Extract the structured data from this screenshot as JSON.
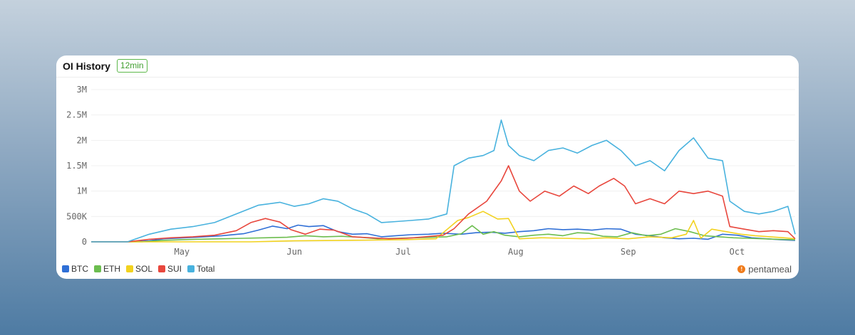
{
  "header": {
    "title": "OI History",
    "badge": "12min"
  },
  "brand": {
    "label": "pentameal",
    "icon": "pentameal-logo-icon"
  },
  "chart_data": {
    "type": "line",
    "title": "OI History",
    "xlabel": "",
    "ylabel": "",
    "ylim": [
      0,
      3000000
    ],
    "yticks": [
      {
        "value": 0,
        "label": "0"
      },
      {
        "value": 500000,
        "label": "500K"
      },
      {
        "value": 1000000,
        "label": "1M"
      },
      {
        "value": 1500000,
        "label": "1.5M"
      },
      {
        "value": 2000000,
        "label": "2M"
      },
      {
        "value": 2500000,
        "label": "2.5M"
      },
      {
        "value": 3000000,
        "label": "3M"
      }
    ],
    "xrange": [
      "2024-04-06",
      "2024-10-17"
    ],
    "xticks": [
      {
        "date": "2024-05-01",
        "label": "May"
      },
      {
        "date": "2024-06-01",
        "label": "Jun"
      },
      {
        "date": "2024-07-01",
        "label": "Jul"
      },
      {
        "date": "2024-08-01",
        "label": "Aug"
      },
      {
        "date": "2024-09-01",
        "label": "Sep"
      },
      {
        "date": "2024-10-01",
        "label": "Oct"
      }
    ],
    "grid": true,
    "legend_position": "bottom-left",
    "series": [
      {
        "name": "BTC",
        "color": "#2f6fd6",
        "points": [
          [
            "2024-04-06",
            0
          ],
          [
            "2024-04-16",
            0
          ],
          [
            "2024-04-22",
            20000
          ],
          [
            "2024-04-26",
            60000
          ],
          [
            "2024-05-05",
            90000
          ],
          [
            "2024-05-12",
            120000
          ],
          [
            "2024-05-18",
            160000
          ],
          [
            "2024-05-22",
            230000
          ],
          [
            "2024-05-26",
            310000
          ],
          [
            "2024-05-30",
            260000
          ],
          [
            "2024-06-02",
            330000
          ],
          [
            "2024-06-05",
            300000
          ],
          [
            "2024-06-09",
            320000
          ],
          [
            "2024-06-13",
            200000
          ],
          [
            "2024-06-17",
            150000
          ],
          [
            "2024-06-21",
            160000
          ],
          [
            "2024-06-25",
            100000
          ],
          [
            "2024-06-29",
            120000
          ],
          [
            "2024-07-03",
            140000
          ],
          [
            "2024-07-08",
            150000
          ],
          [
            "2024-07-12",
            170000
          ],
          [
            "2024-07-17",
            150000
          ],
          [
            "2024-07-21",
            180000
          ],
          [
            "2024-07-25",
            190000
          ],
          [
            "2024-07-29",
            170000
          ],
          [
            "2024-08-02",
            200000
          ],
          [
            "2024-08-06",
            220000
          ],
          [
            "2024-08-10",
            260000
          ],
          [
            "2024-08-14",
            240000
          ],
          [
            "2024-08-18",
            250000
          ],
          [
            "2024-08-22",
            230000
          ],
          [
            "2024-08-26",
            260000
          ],
          [
            "2024-08-30",
            250000
          ],
          [
            "2024-09-03",
            150000
          ],
          [
            "2024-09-07",
            120000
          ],
          [
            "2024-09-11",
            80000
          ],
          [
            "2024-09-15",
            60000
          ],
          [
            "2024-09-19",
            70000
          ],
          [
            "2024-09-23",
            50000
          ],
          [
            "2024-09-27",
            150000
          ],
          [
            "2024-10-01",
            130000
          ],
          [
            "2024-10-05",
            80000
          ],
          [
            "2024-10-09",
            60000
          ],
          [
            "2024-10-13",
            40000
          ],
          [
            "2024-10-17",
            30000
          ]
        ]
      },
      {
        "name": "ETH",
        "color": "#6cbd4f",
        "points": [
          [
            "2024-04-06",
            0
          ],
          [
            "2024-04-20",
            0
          ],
          [
            "2024-04-26",
            30000
          ],
          [
            "2024-05-05",
            50000
          ],
          [
            "2024-05-12",
            60000
          ],
          [
            "2024-05-18",
            70000
          ],
          [
            "2024-05-24",
            80000
          ],
          [
            "2024-05-30",
            90000
          ],
          [
            "2024-06-04",
            120000
          ],
          [
            "2024-06-09",
            100000
          ],
          [
            "2024-06-14",
            110000
          ],
          [
            "2024-06-19",
            90000
          ],
          [
            "2024-06-24",
            60000
          ],
          [
            "2024-06-29",
            70000
          ],
          [
            "2024-07-04",
            80000
          ],
          [
            "2024-07-09",
            90000
          ],
          [
            "2024-07-13",
            100000
          ],
          [
            "2024-07-17",
            160000
          ],
          [
            "2024-07-20",
            320000
          ],
          [
            "2024-07-23",
            150000
          ],
          [
            "2024-07-26",
            200000
          ],
          [
            "2024-07-29",
            130000
          ],
          [
            "2024-08-02",
            100000
          ],
          [
            "2024-08-06",
            130000
          ],
          [
            "2024-08-10",
            150000
          ],
          [
            "2024-08-14",
            120000
          ],
          [
            "2024-08-18",
            180000
          ],
          [
            "2024-08-21",
            170000
          ],
          [
            "2024-08-25",
            110000
          ],
          [
            "2024-08-29",
            100000
          ],
          [
            "2024-09-02",
            180000
          ],
          [
            "2024-09-06",
            120000
          ],
          [
            "2024-09-10",
            150000
          ],
          [
            "2024-09-14",
            260000
          ],
          [
            "2024-09-18",
            200000
          ],
          [
            "2024-09-22",
            120000
          ],
          [
            "2024-09-26",
            100000
          ],
          [
            "2024-09-30",
            80000
          ],
          [
            "2024-10-04",
            70000
          ],
          [
            "2024-10-08",
            60000
          ],
          [
            "2024-10-12",
            50000
          ],
          [
            "2024-10-17",
            40000
          ]
        ]
      },
      {
        "name": "SOL",
        "color": "#f2d21f",
        "points": [
          [
            "2024-04-06",
            0
          ],
          [
            "2024-05-20",
            0
          ],
          [
            "2024-06-01",
            20000
          ],
          [
            "2024-06-15",
            30000
          ],
          [
            "2024-07-01",
            40000
          ],
          [
            "2024-07-10",
            60000
          ],
          [
            "2024-07-16",
            420000
          ],
          [
            "2024-07-19",
            480000
          ],
          [
            "2024-07-23",
            600000
          ],
          [
            "2024-07-27",
            450000
          ],
          [
            "2024-07-30",
            460000
          ],
          [
            "2024-08-02",
            60000
          ],
          [
            "2024-08-08",
            80000
          ],
          [
            "2024-08-14",
            70000
          ],
          [
            "2024-08-20",
            60000
          ],
          [
            "2024-08-26",
            80000
          ],
          [
            "2024-09-01",
            60000
          ],
          [
            "2024-09-07",
            100000
          ],
          [
            "2024-09-13",
            80000
          ],
          [
            "2024-09-17",
            150000
          ],
          [
            "2024-09-19",
            420000
          ],
          [
            "2024-09-21",
            70000
          ],
          [
            "2024-09-24",
            250000
          ],
          [
            "2024-09-28",
            200000
          ],
          [
            "2024-10-02",
            150000
          ],
          [
            "2024-10-06",
            120000
          ],
          [
            "2024-10-10",
            100000
          ],
          [
            "2024-10-14",
            80000
          ],
          [
            "2024-10-17",
            60000
          ]
        ]
      },
      {
        "name": "SUI",
        "color": "#e8473d",
        "points": [
          [
            "2024-04-06",
            0
          ],
          [
            "2024-04-16",
            0
          ],
          [
            "2024-04-22",
            50000
          ],
          [
            "2024-04-28",
            80000
          ],
          [
            "2024-05-04",
            100000
          ],
          [
            "2024-05-10",
            130000
          ],
          [
            "2024-05-16",
            220000
          ],
          [
            "2024-05-20",
            380000
          ],
          [
            "2024-05-24",
            460000
          ],
          [
            "2024-05-28",
            390000
          ],
          [
            "2024-05-31",
            240000
          ],
          [
            "2024-06-04",
            150000
          ],
          [
            "2024-06-08",
            250000
          ],
          [
            "2024-06-12",
            230000
          ],
          [
            "2024-06-17",
            100000
          ],
          [
            "2024-06-22",
            80000
          ],
          [
            "2024-06-27",
            60000
          ],
          [
            "2024-07-02",
            70000
          ],
          [
            "2024-07-07",
            100000
          ],
          [
            "2024-07-12",
            130000
          ],
          [
            "2024-07-15",
            260000
          ],
          [
            "2024-07-19",
            550000
          ],
          [
            "2024-07-24",
            800000
          ],
          [
            "2024-07-28",
            1200000
          ],
          [
            "2024-07-30",
            1500000
          ],
          [
            "2024-08-02",
            1000000
          ],
          [
            "2024-08-05",
            800000
          ],
          [
            "2024-08-09",
            1000000
          ],
          [
            "2024-08-13",
            900000
          ],
          [
            "2024-08-17",
            1100000
          ],
          [
            "2024-08-21",
            950000
          ],
          [
            "2024-08-24",
            1100000
          ],
          [
            "2024-08-28",
            1250000
          ],
          [
            "2024-08-31",
            1100000
          ],
          [
            "2024-09-03",
            750000
          ],
          [
            "2024-09-07",
            850000
          ],
          [
            "2024-09-11",
            750000
          ],
          [
            "2024-09-15",
            1000000
          ],
          [
            "2024-09-19",
            950000
          ],
          [
            "2024-09-23",
            1000000
          ],
          [
            "2024-09-27",
            900000
          ],
          [
            "2024-09-29",
            300000
          ],
          [
            "2024-10-03",
            250000
          ],
          [
            "2024-10-07",
            200000
          ],
          [
            "2024-10-11",
            220000
          ],
          [
            "2024-10-15",
            200000
          ],
          [
            "2024-10-17",
            60000
          ]
        ]
      },
      {
        "name": "Total",
        "color": "#48b2de",
        "points": [
          [
            "2024-04-06",
            0
          ],
          [
            "2024-04-16",
            0
          ],
          [
            "2024-04-22",
            150000
          ],
          [
            "2024-04-28",
            250000
          ],
          [
            "2024-05-04",
            300000
          ],
          [
            "2024-05-10",
            380000
          ],
          [
            "2024-05-16",
            550000
          ],
          [
            "2024-05-22",
            720000
          ],
          [
            "2024-05-28",
            780000
          ],
          [
            "2024-06-01",
            700000
          ],
          [
            "2024-06-05",
            750000
          ],
          [
            "2024-06-09",
            850000
          ],
          [
            "2024-06-13",
            800000
          ],
          [
            "2024-06-17",
            650000
          ],
          [
            "2024-06-21",
            550000
          ],
          [
            "2024-06-25",
            380000
          ],
          [
            "2024-06-29",
            400000
          ],
          [
            "2024-07-03",
            420000
          ],
          [
            "2024-07-08",
            450000
          ],
          [
            "2024-07-13",
            550000
          ],
          [
            "2024-07-15",
            1500000
          ],
          [
            "2024-07-19",
            1650000
          ],
          [
            "2024-07-23",
            1700000
          ],
          [
            "2024-07-26",
            1800000
          ],
          [
            "2024-07-28",
            2400000
          ],
          [
            "2024-07-30",
            1900000
          ],
          [
            "2024-08-02",
            1700000
          ],
          [
            "2024-08-06",
            1600000
          ],
          [
            "2024-08-10",
            1800000
          ],
          [
            "2024-08-14",
            1850000
          ],
          [
            "2024-08-18",
            1750000
          ],
          [
            "2024-08-22",
            1900000
          ],
          [
            "2024-08-26",
            2000000
          ],
          [
            "2024-08-30",
            1800000
          ],
          [
            "2024-09-03",
            1500000
          ],
          [
            "2024-09-07",
            1600000
          ],
          [
            "2024-09-11",
            1400000
          ],
          [
            "2024-09-15",
            1800000
          ],
          [
            "2024-09-19",
            2050000
          ],
          [
            "2024-09-23",
            1650000
          ],
          [
            "2024-09-27",
            1600000
          ],
          [
            "2024-09-29",
            800000
          ],
          [
            "2024-10-03",
            600000
          ],
          [
            "2024-10-07",
            550000
          ],
          [
            "2024-10-11",
            600000
          ],
          [
            "2024-10-15",
            700000
          ],
          [
            "2024-10-17",
            150000
          ]
        ]
      }
    ]
  }
}
